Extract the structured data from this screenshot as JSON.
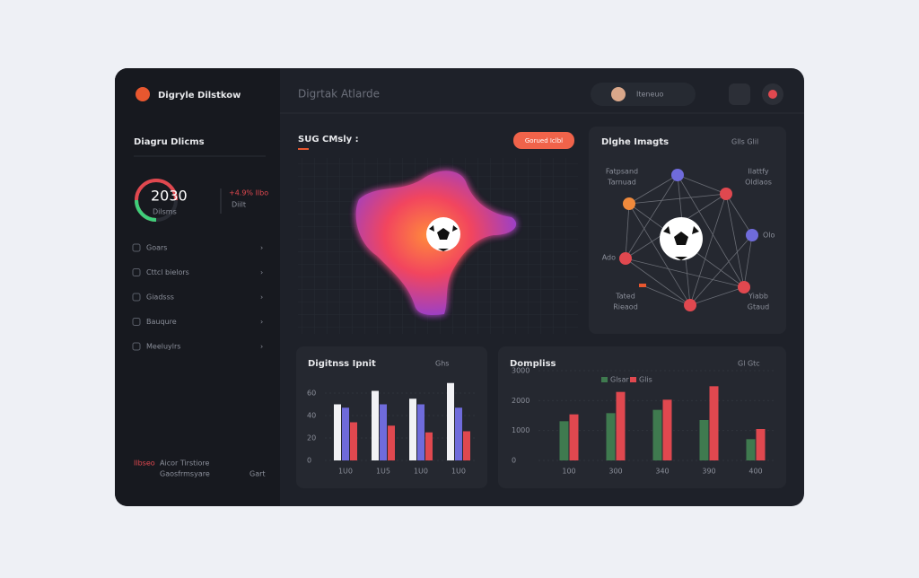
{
  "sidebar": {
    "brand": "Digryle Dilstkow",
    "section_title": "Diagru Dlicms",
    "gauge": {
      "value": "2030",
      "label": "Dilsms"
    },
    "stat": {
      "change": "+4.9% Ilbo",
      "note": "Diilt"
    },
    "menu": [
      "Goars",
      "Cttcl bielors",
      "Giadsss",
      "Bauqure",
      "Meeluylrs"
    ],
    "footer": {
      "tag": "Ilbseo",
      "line1": "Aicor Tirstiore",
      "line2": "Gaosfrmsyare",
      "action": "Gart"
    }
  },
  "header": {
    "title": "Digrtak Atlarde",
    "user": "Iteneuo"
  },
  "heatmap_panel": {
    "title": "SUG CMsly :",
    "button": "Gorued Iclbl"
  },
  "network_panel": {
    "title": "Dlghe Imagts",
    "legend": "Glls Glil",
    "labels": [
      [
        "Fatpsand",
        "Tarnuad"
      ],
      [
        "Ilattfy",
        "Oldlaos"
      ],
      [
        "Olo"
      ],
      [
        "Ado"
      ],
      [
        "Tated",
        "Rieaod"
      ],
      [
        "Yiabb",
        "Gtaud"
      ]
    ]
  },
  "bar_chart": {
    "title": "Digitnss Ipnit",
    "legend": "Ghs",
    "categories": [
      "1U0",
      "1U5",
      "1U0",
      "1U0"
    ],
    "ylim": [
      0,
      80
    ],
    "yticks": [
      0,
      20,
      40,
      60
    ],
    "series": [
      {
        "color": "#f2f2f5",
        "values": [
          50,
          62,
          55,
          69
        ]
      },
      {
        "color": "#6f6bdb",
        "values": [
          47,
          50,
          50,
          47
        ]
      },
      {
        "color": "#e0484f",
        "values": [
          34,
          31,
          25,
          26
        ]
      }
    ]
  },
  "column_chart": {
    "title": "Dompliss",
    "legend": "Gl Gtc",
    "categories": [
      "100",
      "300",
      "340",
      "390",
      "400"
    ],
    "ylim": [
      0,
      3000
    ],
    "yticks": [
      0,
      1000,
      2000,
      3000
    ],
    "series": [
      {
        "name": "Glsar",
        "color": "#3f7a4f",
        "values": [
          1310,
          1580,
          1690,
          1350,
          710
        ]
      },
      {
        "name": "Glis",
        "color": "#e0484f",
        "values": [
          1540,
          2290,
          2030,
          2480,
          1050
        ]
      }
    ]
  }
}
